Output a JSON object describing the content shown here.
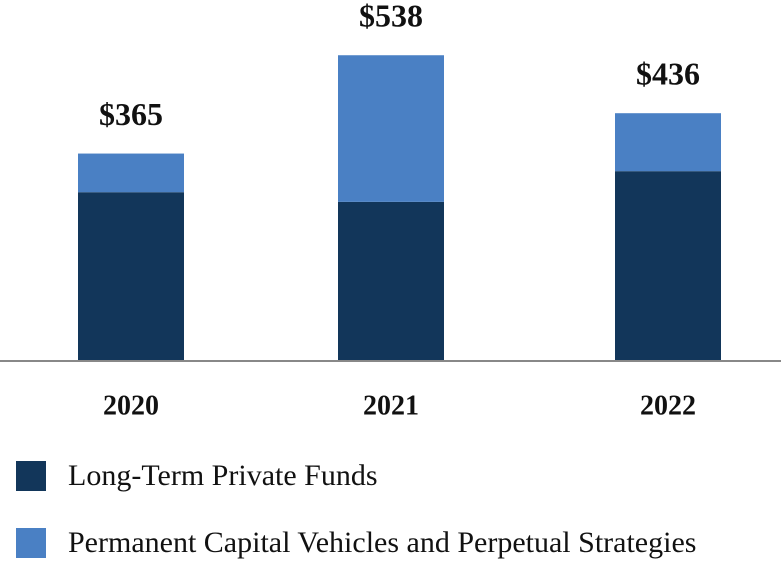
{
  "chart_data": {
    "type": "stacked_bar",
    "categories": [
      "2020",
      "2021",
      "2022"
    ],
    "series": [
      {
        "name": "Long-Term Private Funds",
        "color": "#12365a",
        "values": [
          297,
          280,
          334
        ]
      },
      {
        "name": "Permanent Capital Vehicles and Perpetual Strategies",
        "color": "#4a80c4",
        "values": [
          68,
          258,
          102
        ]
      }
    ],
    "totals": [
      365,
      538,
      436
    ],
    "total_labels": [
      "$365",
      "$538",
      "$436"
    ],
    "ylim": [
      0,
      600
    ]
  }
}
